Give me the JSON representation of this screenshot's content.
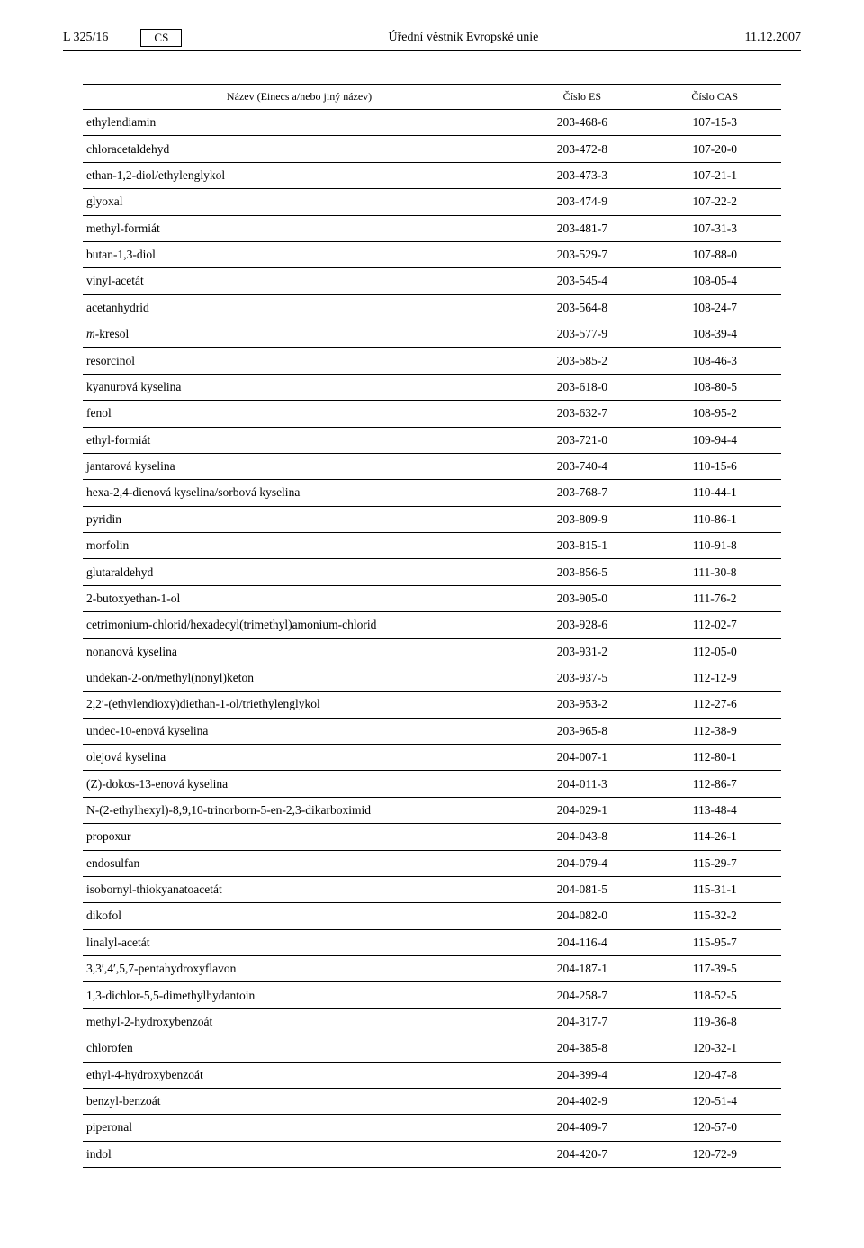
{
  "header": {
    "page_ref": "L 325/16",
    "lang": "CS",
    "journal": "Úřední věstník Evropské unie",
    "date": "11.12.2007"
  },
  "table": {
    "columns": [
      "Název (Einecs a/nebo jiný název)",
      "Číslo ES",
      "Číslo CAS"
    ],
    "rows": [
      {
        "name": "ethylendiamin",
        "es": "203-468-6",
        "cas": "107-15-3"
      },
      {
        "name": "chloracetaldehyd",
        "es": "203-472-8",
        "cas": "107-20-0"
      },
      {
        "name": "ethan-1,2-diol/ethylenglykol",
        "es": "203-473-3",
        "cas": "107-21-1"
      },
      {
        "name": "glyoxal",
        "es": "203-474-9",
        "cas": "107-22-2"
      },
      {
        "name": "methyl-formiát",
        "es": "203-481-7",
        "cas": "107-31-3"
      },
      {
        "name": "butan-1,3-diol",
        "es": "203-529-7",
        "cas": "107-88-0"
      },
      {
        "name": "vinyl-acetát",
        "es": "203-545-4",
        "cas": "108-05-4"
      },
      {
        "name": "acetanhydrid",
        "es": "203-564-8",
        "cas": "108-24-7"
      },
      {
        "name_html": "<span class='italic'>m</span>-kresol",
        "es": "203-577-9",
        "cas": "108-39-4"
      },
      {
        "name": "resorcinol",
        "es": "203-585-2",
        "cas": "108-46-3"
      },
      {
        "name": "kyanurová kyselina",
        "es": "203-618-0",
        "cas": "108-80-5"
      },
      {
        "name": "fenol",
        "es": "203-632-7",
        "cas": "108-95-2"
      },
      {
        "name": "ethyl-formiát",
        "es": "203-721-0",
        "cas": "109-94-4"
      },
      {
        "name": "jantarová kyselina",
        "es": "203-740-4",
        "cas": "110-15-6"
      },
      {
        "name": "hexa-2,4-dienová kyselina/sorbová kyselina",
        "es": "203-768-7",
        "cas": "110-44-1"
      },
      {
        "name": "pyridin",
        "es": "203-809-9",
        "cas": "110-86-1"
      },
      {
        "name": "morfolin",
        "es": "203-815-1",
        "cas": "110-91-8"
      },
      {
        "name": "glutaraldehyd",
        "es": "203-856-5",
        "cas": "111-30-8"
      },
      {
        "name": "2-butoxyethan-1-ol",
        "es": "203-905-0",
        "cas": "111-76-2"
      },
      {
        "name": "cetrimonium-chlorid/hexadecyl(trimethyl)amonium-chlorid",
        "es": "203-928-6",
        "cas": "112-02-7"
      },
      {
        "name": "nonanová kyselina",
        "es": "203-931-2",
        "cas": "112-05-0"
      },
      {
        "name": "undekan-2-on/methyl(nonyl)keton",
        "es": "203-937-5",
        "cas": "112-12-9"
      },
      {
        "name": "2,2′-(ethylendioxy)diethan-1-ol/triethylenglykol",
        "es": "203-953-2",
        "cas": "112-27-6"
      },
      {
        "name": "undec-10-enová kyselina",
        "es": "203-965-8",
        "cas": "112-38-9"
      },
      {
        "name": "olejová kyselina",
        "es": "204-007-1",
        "cas": "112-80-1"
      },
      {
        "name": "(Z)-dokos-13-enová kyselina",
        "es": "204-011-3",
        "cas": "112-86-7"
      },
      {
        "name": "N-(2-ethylhexyl)-8,9,10-trinorborn-5-en-2,3-dikarboximid",
        "es": "204-029-1",
        "cas": "113-48-4"
      },
      {
        "name": "propoxur",
        "es": "204-043-8",
        "cas": "114-26-1"
      },
      {
        "name": "endosulfan",
        "es": "204-079-4",
        "cas": "115-29-7"
      },
      {
        "name": "isobornyl-thiokyanatoacetát",
        "es": "204-081-5",
        "cas": "115-31-1"
      },
      {
        "name": "dikofol",
        "es": "204-082-0",
        "cas": "115-32-2"
      },
      {
        "name": "linalyl-acetát",
        "es": "204-116-4",
        "cas": "115-95-7"
      },
      {
        "name": "3,3′,4′,5,7-pentahydroxyflavon",
        "es": "204-187-1",
        "cas": "117-39-5"
      },
      {
        "name": "1,3-dichlor-5,5-dimethylhydantoin",
        "es": "204-258-7",
        "cas": "118-52-5"
      },
      {
        "name": "methyl-2-hydroxybenzoát",
        "es": "204-317-7",
        "cas": "119-36-8"
      },
      {
        "name": "chlorofen",
        "es": "204-385-8",
        "cas": "120-32-1"
      },
      {
        "name": "ethyl-4-hydroxybenzoát",
        "es": "204-399-4",
        "cas": "120-47-8"
      },
      {
        "name": "benzyl-benzoát",
        "es": "204-402-9",
        "cas": "120-51-4"
      },
      {
        "name": "piperonal",
        "es": "204-409-7",
        "cas": "120-57-0"
      },
      {
        "name": "indol",
        "es": "204-420-7",
        "cas": "120-72-9"
      }
    ]
  }
}
